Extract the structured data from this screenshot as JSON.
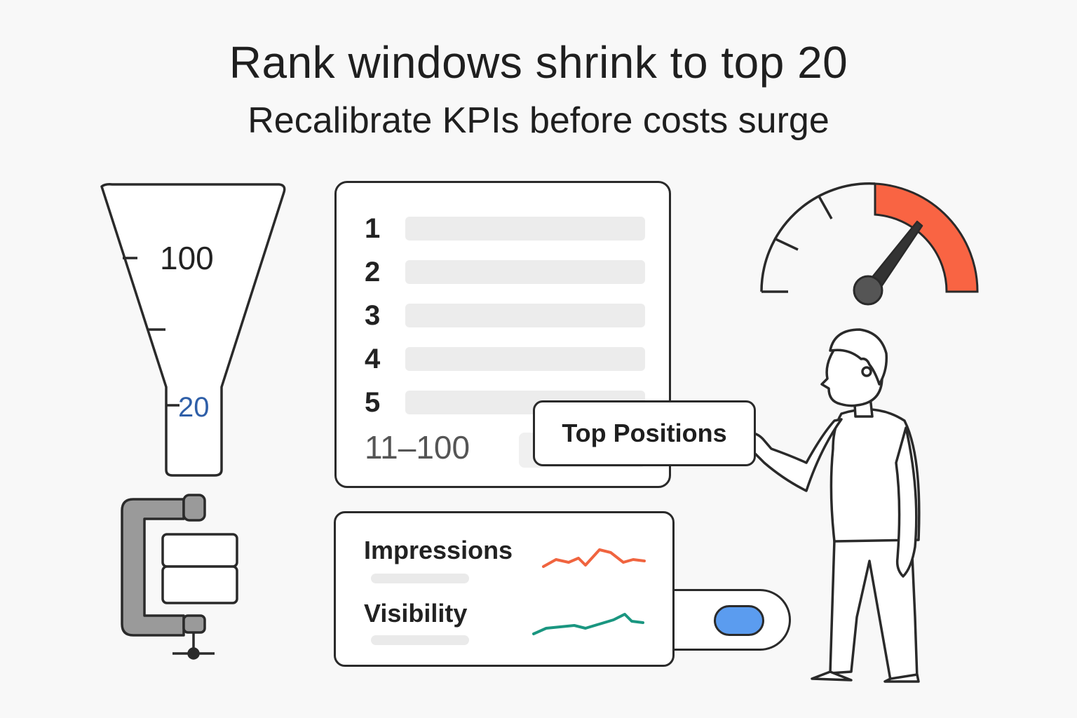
{
  "header": {
    "title": "Rank windows shrink to top 20",
    "subtitle": "Recalibrate KPIs before costs surge"
  },
  "funnel": {
    "label_top": "100",
    "label_bottom": "20",
    "accent": "#2f5fa8"
  },
  "rank_list": {
    "rows": [
      "1",
      "2",
      "3",
      "4",
      "5"
    ],
    "range_label": "11–100"
  },
  "callout": {
    "label": "Top Positions"
  },
  "kpis": {
    "impressions_label": "Impressions",
    "visibility_label": "Visibility",
    "impressions_color": "#f0643f",
    "visibility_color": "#1a9680"
  },
  "toggle": {
    "state": "on",
    "color": "#5b9cef"
  },
  "gauge": {
    "danger_color": "#f96443",
    "needle_level": "high"
  },
  "icons": [
    "funnel-icon",
    "clamp-icon",
    "gauge-icon",
    "person-illustration"
  ]
}
